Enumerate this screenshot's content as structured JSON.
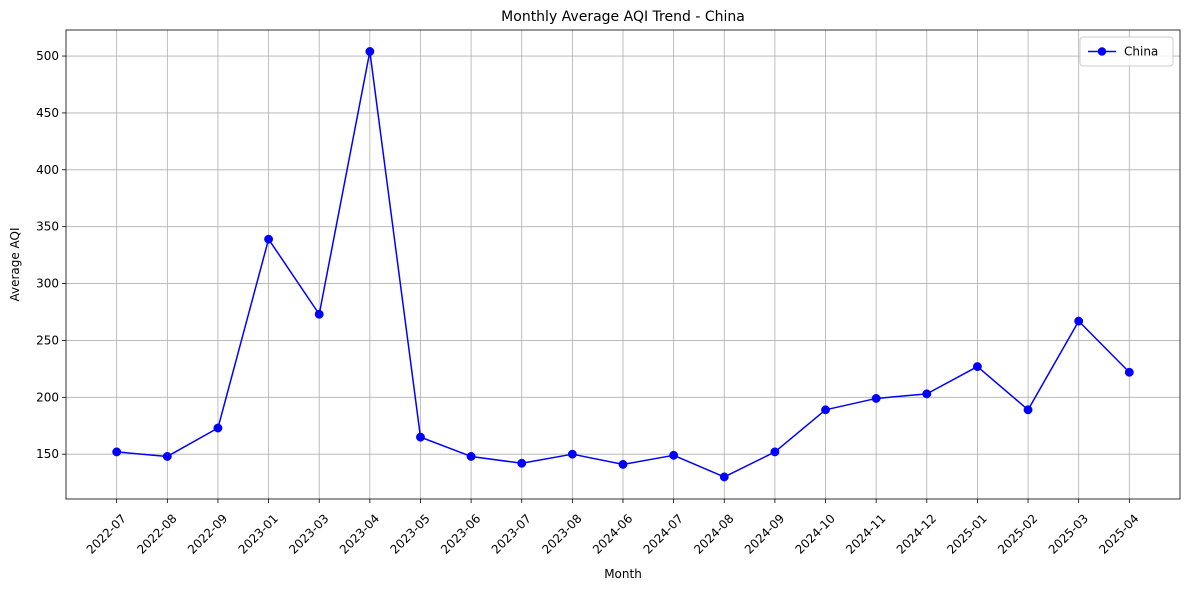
{
  "chart_data": {
    "type": "line",
    "title": "Monthly Average AQI Trend - China",
    "xlabel": "Month",
    "ylabel": "Average AQI",
    "categories": [
      "2022-07",
      "2022-08",
      "2022-09",
      "2023-01",
      "2023-03",
      "2023-04",
      "2023-05",
      "2023-06",
      "2023-07",
      "2023-08",
      "2024-06",
      "2024-07",
      "2024-08",
      "2024-09",
      "2024-10",
      "2024-11",
      "2024-12",
      "2025-01",
      "2025-02",
      "2025-03",
      "2025-04"
    ],
    "series": [
      {
        "name": "China",
        "color": "#0000ff",
        "marker": "circle",
        "values": [
          152,
          148,
          173,
          339,
          273,
          504,
          165,
          148,
          142,
          150,
          141,
          149,
          130,
          152,
          189,
          199,
          203,
          227,
          189,
          267,
          222
        ]
      }
    ],
    "ylim": [
      110.6,
      522.9
    ],
    "yticks": [
      150,
      200,
      250,
      300,
      350,
      400,
      450,
      500
    ],
    "x_tick_rotation": 45,
    "grid": true,
    "legend": {
      "position": "top-right",
      "entries": [
        "China"
      ]
    }
  }
}
